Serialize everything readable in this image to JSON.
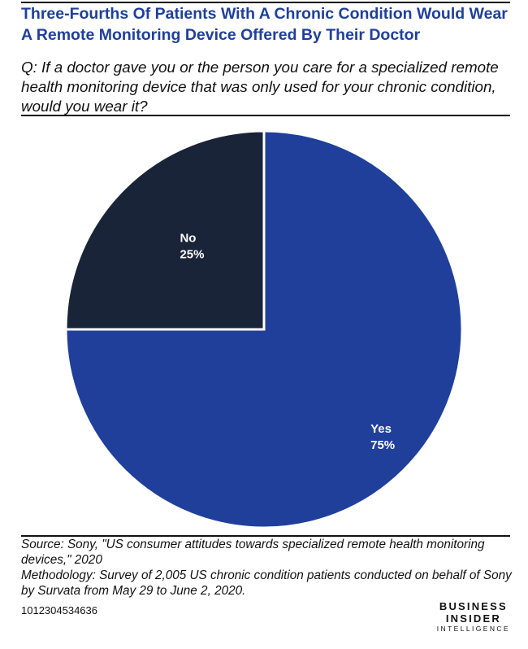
{
  "header": {
    "title": "Three-Fourths Of Patients With A Chronic Condition Would Wear A Remote Monitoring Device Offered By Their Doctor",
    "question": "Q: If a doctor gave you or the person you care for a specialized remote health monitoring device that was only used for your chronic condition, would you wear it?"
  },
  "chart_data": {
    "type": "pie",
    "categories": [
      "Yes",
      "No"
    ],
    "values": [
      75,
      25
    ],
    "value_labels": [
      "75%",
      "25%"
    ],
    "colors": [
      "#1f3f9a",
      "#1a2438"
    ],
    "title": "",
    "legend": "none"
  },
  "footer": {
    "source": "Source: Sony, \"US consumer attitudes towards specialized remote health monitoring devices,\" 2020",
    "methodology": "Methodology: Survey of 2,005 US chronic condition patients conducted on behalf of Sony by Survata from May 29 to June 2, 2020.",
    "chart_id": "1012304534636",
    "brand": {
      "line1": "BUSINESS",
      "line2": "INSIDER",
      "line3": "INTELLIGENCE"
    }
  }
}
